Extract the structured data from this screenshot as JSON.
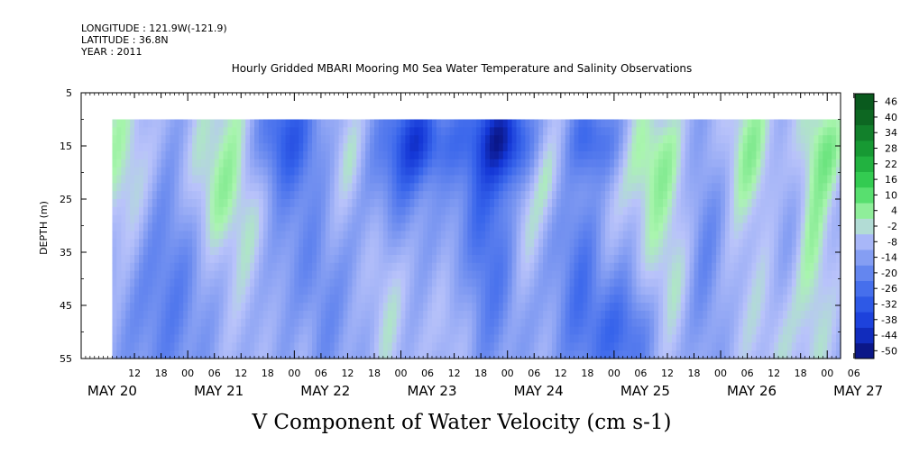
{
  "header": {
    "longitude": "LONGITUDE : 121.9W(-121.9)",
    "latitude": "LATITUDE : 36.8N",
    "year": "YEAR : 2011"
  },
  "chart_data": {
    "type": "heatmap",
    "title": "Hourly Gridded MBARI Mooring M0 Sea Water Temperature and Salinity Observations",
    "xlabel": "V Component of Water Velocity (cm s-1)",
    "ylabel": "DEPTH (m)",
    "ylim": [
      55,
      5
    ],
    "xlim_hours": [
      0,
      171
    ],
    "depth_ticks": [
      5,
      15,
      25,
      35,
      45,
      55
    ],
    "hour_tick_labels": [
      "12",
      "18",
      "00",
      "06",
      "12",
      "18",
      "00",
      "06",
      "12",
      "18",
      "00",
      "06",
      "12",
      "18",
      "00",
      "06",
      "12",
      "18",
      "00",
      "06",
      "12",
      "18",
      "00",
      "06",
      "12",
      "18",
      "00",
      "06"
    ],
    "day_labels": [
      "MAY 20",
      "MAY 21",
      "MAY 22",
      "MAY 23",
      "MAY 24",
      "MAY 25",
      "MAY 26",
      "MAY 27"
    ],
    "data_depth_range": [
      10,
      55
    ],
    "colorbar": {
      "levels": [
        -50,
        -44,
        -38,
        -32,
        -26,
        -20,
        -14,
        -8,
        -2,
        4,
        10,
        16,
        22,
        28,
        34,
        40,
        46
      ],
      "labels": [
        "46",
        "40",
        "34",
        "28",
        "22",
        "16",
        "10",
        "4",
        "-2",
        "-8",
        "-14",
        "-20",
        "-26",
        "-32",
        "-38",
        "-44",
        "-50"
      ],
      "low_color": "#0b1170",
      "mid_color": "#b9c2ff",
      "high_color": "#0a5c1e"
    },
    "grid": false,
    "legend_position": "right"
  }
}
